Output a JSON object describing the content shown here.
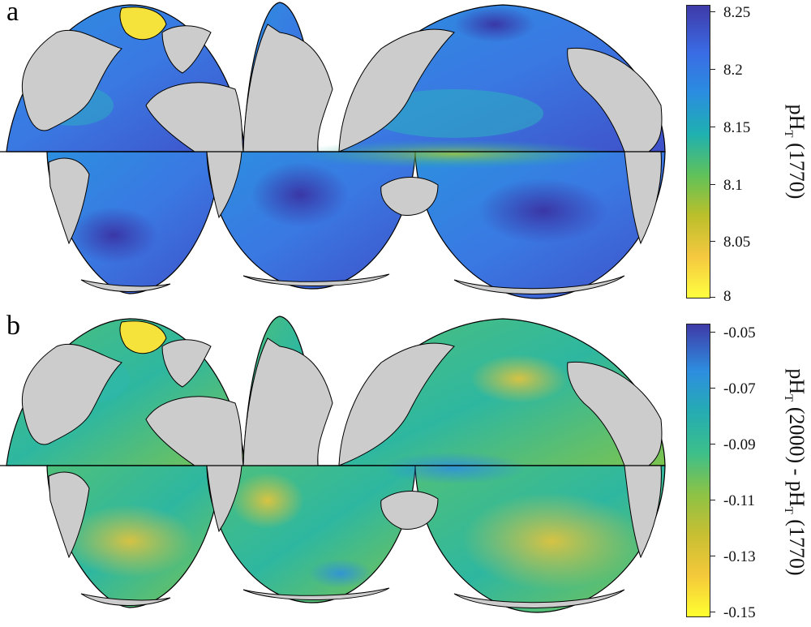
{
  "figure": {
    "panels": [
      {
        "id": "a",
        "letter": "a",
        "colorbar": {
          "label_parts": [
            "pH",
            "T",
            " (1770)"
          ],
          "ticks": [
            "8.25",
            "8.2",
            "8.15",
            "8.1",
            "8.05",
            "8"
          ],
          "range": [
            8.0,
            8.255
          ],
          "colormap": [
            "#ffff40",
            "#f5c840",
            "#bcbf2a",
            "#5fc25a",
            "#1fb0b0",
            "#2a8ee0",
            "#3a6be4",
            "#3f3aa8"
          ]
        },
        "fill_stops": [
          "#2c99df",
          "#2c99df",
          "#3f68e0"
        ]
      },
      {
        "id": "b",
        "letter": "b",
        "colorbar": {
          "label_parts": [
            "pH",
            "T",
            " (2000) - pH",
            "T",
            " (1770)"
          ],
          "ticks": [
            "-0.05",
            "-0.07",
            "-0.09",
            "-0.11",
            "-0.13",
            "-0.15"
          ],
          "range": [
            -0.151,
            -0.047
          ],
          "colormap": [
            "#ffff30",
            "#f4c83a",
            "#c8bf32",
            "#8cc245",
            "#3cbf8a",
            "#25acb2",
            "#2d8ee0",
            "#3f3aa8"
          ]
        },
        "fill_stops": [
          "#6ec45a",
          "#3cbf8a",
          "#b7c235"
        ]
      }
    ],
    "map": {
      "projection": "interrupted Goode homolosine",
      "land_color": "#cccccc",
      "outline_color": "#000000"
    }
  }
}
